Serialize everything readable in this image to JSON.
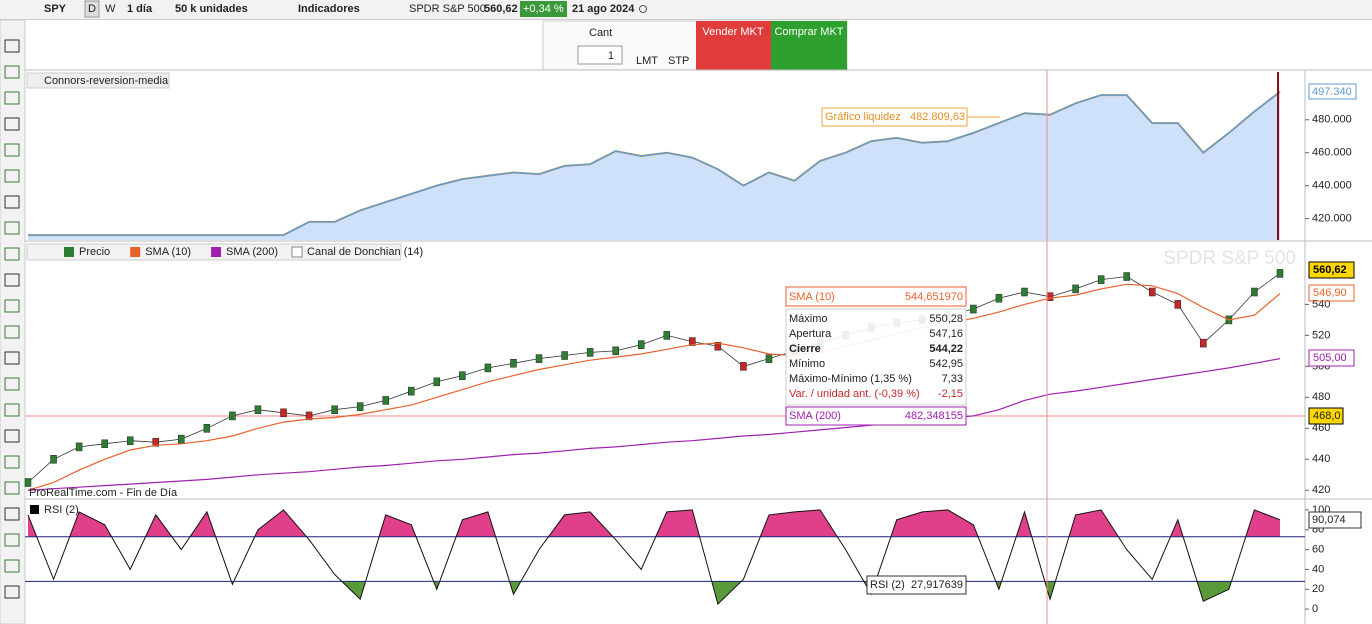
{
  "toolbar": {
    "symbol": "SPY",
    "daily": "D",
    "weekly": "W",
    "period": "1 día",
    "units": "50 k unidades",
    "indicators": "Indicadores",
    "instrument": "SPDR S&P 500",
    "price": "560,62",
    "change": "+0,34 %",
    "date": "21 ago 2024"
  },
  "order_panel": {
    "qty_label": "Cant",
    "qty": "1",
    "limit": "LMT",
    "stop": "STP",
    "sell": "Vender MKT",
    "buy": "Comprar MKT"
  },
  "chart_data": [
    {
      "type": "area",
      "legend": "Connors-reversion-media",
      "series": [
        {
          "name": "Gráfico liquidez",
          "color": "#5b9bd5",
          "fill": "#cfe0fb",
          "edge": "#f0a030",
          "values": [
            410,
            410,
            410,
            410,
            410,
            410,
            410,
            410,
            410,
            410,
            410,
            418,
            418,
            425,
            430,
            435,
            440,
            444,
            446,
            448,
            447,
            452,
            453,
            461,
            458,
            460,
            457,
            450,
            440,
            448,
            443,
            455,
            460,
            467,
            469,
            466,
            467,
            472,
            478,
            484,
            483,
            490,
            495,
            495,
            478,
            478,
            460,
            472,
            485,
            497
          ],
          "value_label": "482.809,63"
        }
      ],
      "last_label": "497.340",
      "ylim": [
        407,
        509
      ],
      "yticks": [
        {
          "value": 420,
          "label": "420.000"
        },
        {
          "value": 440,
          "label": "440.000"
        },
        {
          "value": 460,
          "label": "460.000"
        },
        {
          "value": 480,
          "label": "480.000"
        }
      ]
    },
    {
      "type": "line",
      "title": "SPDR S&P 500",
      "series": [
        {
          "name": "Precio",
          "color": "#2e7d32",
          "values": [
            425,
            440,
            448,
            450,
            452,
            451,
            453,
            460,
            468,
            472,
            470,
            468,
            472,
            474,
            478,
            484,
            490,
            494,
            499,
            502,
            505,
            507,
            509,
            510,
            514,
            520,
            516,
            513,
            500,
            505,
            510,
            515,
            520,
            525,
            528,
            530,
            533,
            537,
            544,
            548,
            545,
            550,
            556,
            558,
            548,
            540,
            515,
            530,
            548,
            560
          ]
        },
        {
          "name": "SMA (10)",
          "color": "#e8622c",
          "values": [
            420,
            425,
            433,
            440,
            446,
            449,
            450,
            452,
            455,
            460,
            464,
            466,
            467,
            469,
            472,
            475,
            480,
            485,
            490,
            494,
            498,
            501,
            504,
            506,
            508,
            511,
            514,
            515,
            512,
            508,
            507,
            509,
            513,
            517,
            521,
            525,
            528,
            531,
            535,
            540,
            544,
            546,
            550,
            553,
            552,
            547,
            538,
            530,
            533,
            547
          ]
        },
        {
          "name": "SMA (200)",
          "color": "#a020b0",
          "values": [
            420,
            421,
            422,
            423,
            424,
            425,
            426,
            427,
            428.5,
            430,
            431,
            432,
            433.5,
            435,
            436,
            437.5,
            439,
            440,
            441.5,
            443,
            444,
            445.5,
            447,
            448,
            449.5,
            451,
            452,
            453.5,
            455,
            456,
            457.5,
            459,
            460.5,
            462,
            463.5,
            465,
            466.5,
            468,
            472,
            478,
            482,
            484,
            486.5,
            489,
            491.5,
            494,
            496.5,
            499,
            502,
            505
          ]
        }
      ],
      "extra_legend": "Canal de Donchian (14)",
      "last_labels": [
        "560,62",
        "546,90",
        "505,00"
      ],
      "cursor_label": "468,0",
      "footer": "ProRealTime.com - Fin de Día",
      "tooltip": {
        "sma10": [
          "SMA (10)",
          "544,651970"
        ],
        "rows": [
          [
            "Máximo",
            "550,28"
          ],
          [
            "Apertura",
            "547,16"
          ],
          [
            "Cierre",
            "544,22"
          ],
          [
            "Mínimo",
            "542,95"
          ],
          [
            "Máximo-Mínimo (1,35 %)",
            "7,33"
          ],
          [
            "Var. / unidad ant. (-0,39 %)",
            "-2,15"
          ]
        ],
        "sma200": [
          "SMA (200)",
          "482,348155"
        ]
      },
      "ylim": [
        415,
        579
      ],
      "yticks": [
        420,
        440,
        460,
        480,
        500,
        520,
        540
      ]
    },
    {
      "type": "line",
      "series": [
        {
          "name": "RSI (2)",
          "color": "#111111",
          "values": [
            95,
            30,
            98,
            85,
            40,
            95,
            60,
            98,
            25,
            80,
            100,
            70,
            35,
            10,
            95,
            85,
            20,
            90,
            98,
            15,
            60,
            95,
            98,
            70,
            40,
            98,
            100,
            5,
            30,
            95,
            98,
            100,
            60,
            15,
            90,
            98,
            100,
            85,
            20,
            98,
            10,
            95,
            100,
            60,
            30,
            90,
            8,
            20,
            100,
            90
          ]
        }
      ],
      "levels": [
        73,
        28
      ],
      "high_fill": "#e0408a",
      "low_fill": "#5a9a3a",
      "last_label": "90,074",
      "tooltip": [
        "RSI (2)",
        "27,917639"
      ],
      "ylim": [
        -11,
        108
      ],
      "yticks": [
        0,
        20,
        40,
        60,
        80,
        100
      ]
    }
  ]
}
